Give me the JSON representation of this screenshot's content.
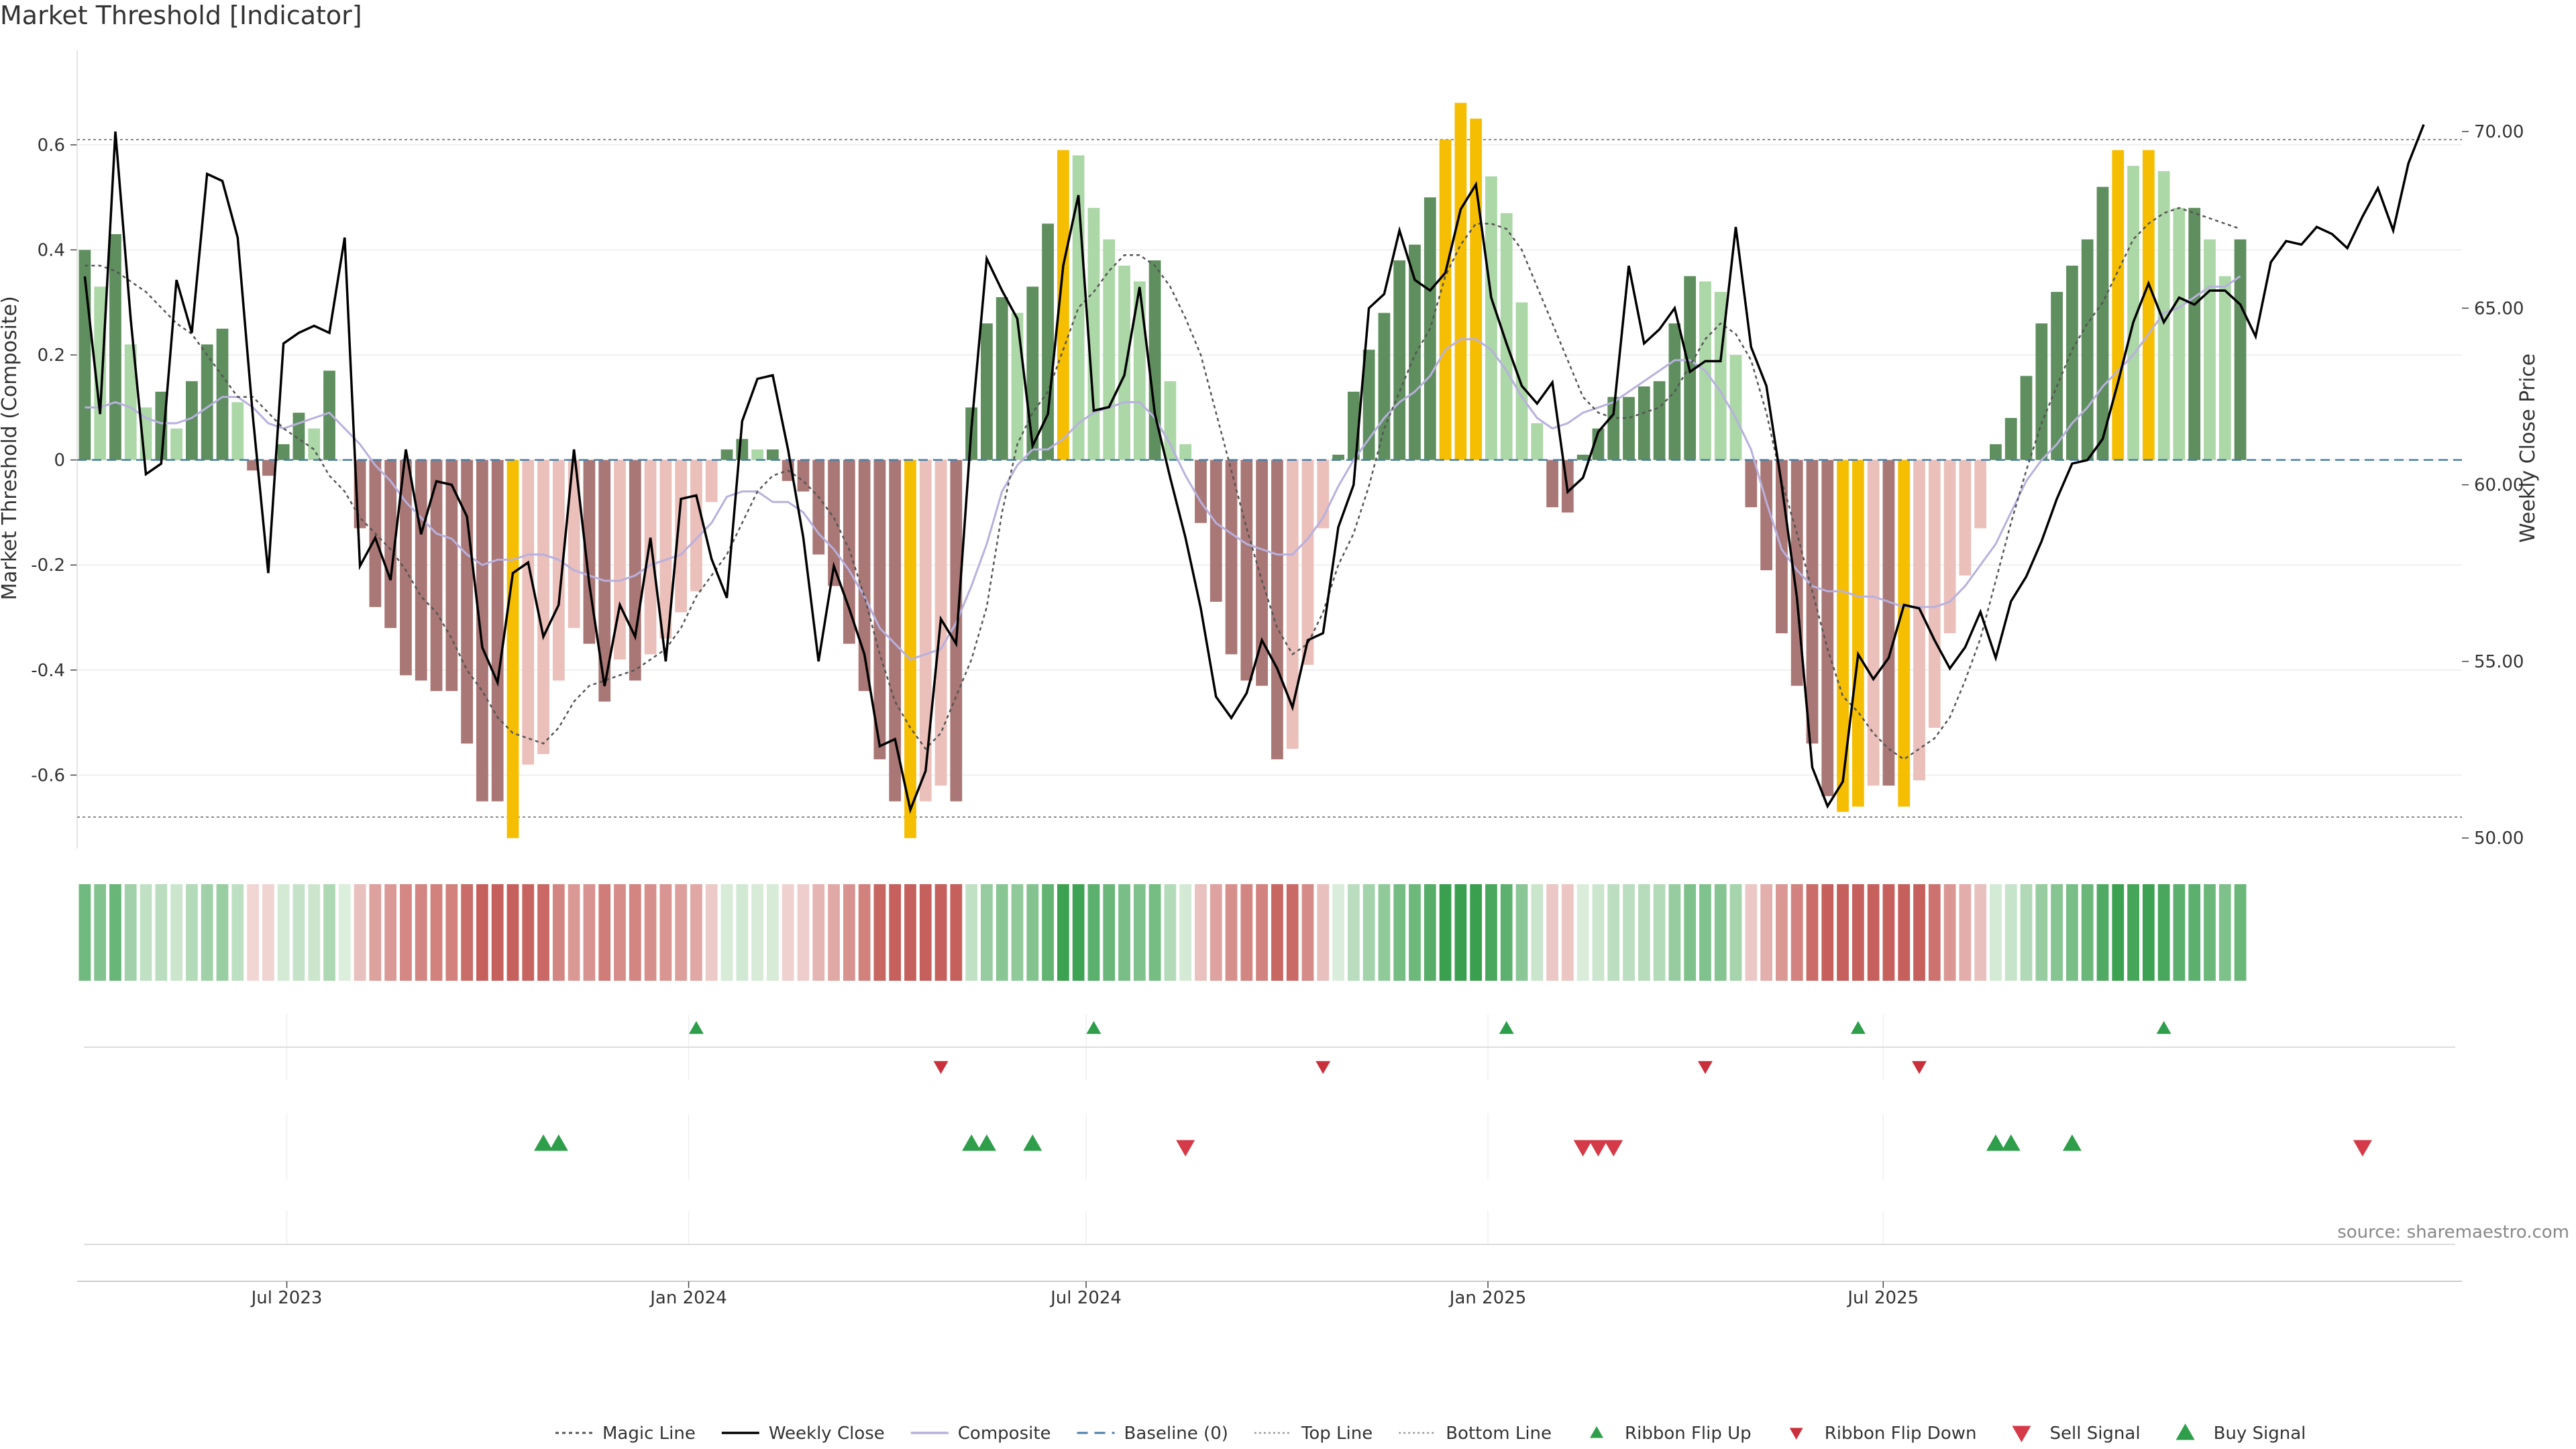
{
  "title": "Market Threshold [Indicator]",
  "source_text": "source: sharemaestro.com",
  "chart_data": {
    "type": "bar",
    "weeks": 156,
    "start_date": "2023-03-27",
    "left_axis": {
      "label": "Market Threshold (Composite)",
      "ylim": [
        -0.74,
        0.78
      ],
      "ticks": [
        "-0.6",
        "-0.4",
        "-0.2",
        "0",
        "0.2",
        "0.4",
        "0.6"
      ]
    },
    "right_axis": {
      "label": "Weekly Close Price",
      "ylim": [
        49.7,
        72.3
      ],
      "ticks": [
        "50.00",
        "55.00",
        "60.00",
        "65.00",
        "70.00"
      ]
    },
    "x_ticks": [
      {
        "label": "Jul 2023",
        "date": "2023-07-01"
      },
      {
        "label": "Jan 2024",
        "date": "2024-01-01"
      },
      {
        "label": "Jul 2024",
        "date": "2024-07-01"
      },
      {
        "label": "Jan 2025",
        "date": "2025-01-01"
      },
      {
        "label": "Jul 2025",
        "date": "2025-07-01"
      }
    ],
    "top_line": 0.61,
    "bottom_line": -0.68,
    "baseline": 0,
    "composite": [
      0.4,
      0.33,
      0.43,
      0.22,
      0.1,
      0.13,
      0.06,
      0.15,
      0.22,
      0.25,
      0.11,
      -0.02,
      -0.03,
      0.03,
      0.09,
      0.06,
      0.17,
      0.0,
      -0.13,
      -0.28,
      -0.32,
      -0.41,
      -0.42,
      -0.44,
      -0.44,
      -0.54,
      -0.65,
      -0.65,
      -0.72,
      -0.58,
      -0.56,
      -0.42,
      -0.32,
      -0.35,
      -0.46,
      -0.38,
      -0.42,
      -0.37,
      -0.34,
      -0.29,
      -0.25,
      -0.08,
      0.02,
      0.04,
      0.02,
      0.02,
      -0.04,
      -0.06,
      -0.18,
      -0.24,
      -0.35,
      -0.44,
      -0.57,
      -0.65,
      -0.72,
      -0.65,
      -0.62,
      -0.65,
      0.1,
      0.26,
      0.31,
      0.28,
      0.33,
      0.45,
      0.59,
      0.58,
      0.48,
      0.42,
      0.37,
      0.34,
      0.38,
      0.15,
      0.03,
      -0.12,
      -0.27,
      -0.37,
      -0.42,
      -0.43,
      -0.57,
      -0.55,
      -0.39,
      -0.13,
      0.01,
      0.13,
      0.21,
      0.28,
      0.38,
      0.41,
      0.5,
      0.61,
      0.68,
      0.65,
      0.54,
      0.47,
      0.3,
      0.07,
      -0.09,
      -0.1,
      0.01,
      0.06,
      0.12,
      0.12,
      0.14,
      0.15,
      0.26,
      0.35,
      0.34,
      0.32,
      0.2,
      -0.09,
      -0.21,
      -0.33,
      -0.43,
      -0.54,
      -0.64,
      -0.67,
      -0.66,
      -0.62,
      -0.62,
      -0.66,
      -0.61,
      -0.51,
      -0.33,
      -0.22,
      -0.13,
      0.03,
      0.08,
      0.16,
      0.26,
      0.32,
      0.37,
      0.42,
      0.52,
      0.59,
      0.56,
      0.59,
      0.55,
      0.48,
      0.48,
      0.42,
      0.35,
      0.42
    ],
    "weekly_close": [
      65.9,
      62.0,
      70.0,
      64.7,
      60.3,
      60.6,
      65.8,
      64.3,
      68.8,
      68.6,
      67.0,
      61.9,
      57.5,
      64.0,
      64.3,
      64.5,
      64.3,
      67.0,
      57.7,
      58.5,
      57.3,
      61.0,
      58.6,
      60.1,
      60.0,
      59.1,
      55.4,
      54.4,
      57.5,
      57.8,
      55.7,
      56.6,
      61.0,
      57.2,
      54.3,
      56.6,
      55.7,
      58.5,
      55.0,
      59.6,
      59.7,
      57.9,
      56.8,
      61.8,
      63.0,
      63.1,
      61.0,
      58.5,
      55.0,
      57.7,
      56.5,
      55.2,
      52.6,
      52.8,
      50.8,
      51.9,
      56.2,
      55.5,
      61.6,
      66.4,
      65.5,
      64.7,
      61.1,
      62.0,
      66.2,
      68.2,
      62.1,
      62.2,
      63.1,
      65.6,
      62.0,
      60.2,
      58.5,
      56.5,
      54.0,
      53.4,
      54.1,
      55.6,
      54.8,
      53.7,
      55.6,
      55.8,
      58.8,
      60.0,
      65.0,
      65.4,
      67.2,
      65.8,
      65.5,
      66.0,
      67.8,
      68.5,
      65.3,
      64.0,
      62.8,
      62.3,
      62.9,
      59.8,
      60.2,
      61.5,
      62.0,
      66.2,
      64.0,
      64.4,
      65.0,
      63.2,
      63.5,
      63.5,
      67.3,
      63.9,
      62.8,
      60.0,
      56.8,
      52.0,
      50.9,
      51.6,
      55.2,
      54.5,
      55.1,
      56.6,
      56.5,
      55.6,
      54.8,
      55.4,
      56.4,
      55.1,
      56.7,
      57.4,
      58.4,
      59.6,
      60.6,
      60.7,
      61.3,
      62.9,
      64.6,
      65.7,
      64.6,
      65.3,
      65.1,
      65.5,
      65.5,
      65.1,
      64.2,
      66.3,
      66.9,
      66.8,
      67.3,
      67.1,
      66.7,
      67.6,
      68.4,
      67.2,
      69.1,
      70.2
    ],
    "magic_line": [
      0.37,
      0.37,
      0.36,
      0.34,
      0.32,
      0.29,
      0.26,
      0.24,
      0.2,
      0.16,
      0.12,
      0.12,
      0.09,
      0.06,
      0.04,
      0.02,
      -0.03,
      -0.06,
      -0.11,
      -0.14,
      -0.17,
      -0.21,
      -0.26,
      -0.29,
      -0.34,
      -0.4,
      -0.44,
      -0.49,
      -0.52,
      -0.53,
      -0.54,
      -0.51,
      -0.46,
      -0.43,
      -0.42,
      -0.41,
      -0.4,
      -0.38,
      -0.36,
      -0.32,
      -0.26,
      -0.22,
      -0.18,
      -0.12,
      -0.06,
      -0.03,
      -0.02,
      -0.04,
      -0.07,
      -0.11,
      -0.17,
      -0.26,
      -0.37,
      -0.46,
      -0.51,
      -0.55,
      -0.52,
      -0.45,
      -0.38,
      -0.28,
      -0.1,
      0.03,
      0.09,
      0.13,
      0.21,
      0.29,
      0.32,
      0.36,
      0.39,
      0.39,
      0.37,
      0.33,
      0.27,
      0.2,
      0.09,
      -0.02,
      -0.13,
      -0.23,
      -0.32,
      -0.37,
      -0.35,
      -0.29,
      -0.2,
      -0.14,
      -0.05,
      0.06,
      0.13,
      0.2,
      0.25,
      0.35,
      0.41,
      0.45,
      0.45,
      0.44,
      0.4,
      0.33,
      0.26,
      0.19,
      0.12,
      0.09,
      0.08,
      0.08,
      0.09,
      0.1,
      0.13,
      0.18,
      0.23,
      0.26,
      0.24,
      0.19,
      0.09,
      -0.04,
      -0.14,
      -0.25,
      -0.36,
      -0.45,
      -0.48,
      -0.52,
      -0.55,
      -0.57,
      -0.55,
      -0.53,
      -0.49,
      -0.42,
      -0.34,
      -0.23,
      -0.12,
      -0.02,
      0.07,
      0.14,
      0.21,
      0.26,
      0.3,
      0.36,
      0.42,
      0.45,
      0.47,
      0.48,
      0.47,
      0.46,
      0.45,
      0.44
    ],
    "composite_ma": [
      0.1,
      0.1,
      0.11,
      0.1,
      0.08,
      0.07,
      0.07,
      0.08,
      0.1,
      0.12,
      0.12,
      0.1,
      0.07,
      0.06,
      0.07,
      0.08,
      0.09,
      0.06,
      0.03,
      -0.01,
      -0.04,
      -0.08,
      -0.11,
      -0.14,
      -0.15,
      -0.18,
      -0.2,
      -0.19,
      -0.19,
      -0.18,
      -0.18,
      -0.19,
      -0.21,
      -0.22,
      -0.23,
      -0.23,
      -0.22,
      -0.2,
      -0.19,
      -0.18,
      -0.15,
      -0.12,
      -0.07,
      -0.06,
      -0.06,
      -0.08,
      -0.08,
      -0.1,
      -0.14,
      -0.17,
      -0.21,
      -0.26,
      -0.32,
      -0.35,
      -0.38,
      -0.37,
      -0.36,
      -0.31,
      -0.24,
      -0.16,
      -0.06,
      -0.01,
      0.02,
      0.02,
      0.04,
      0.07,
      0.09,
      0.1,
      0.11,
      0.11,
      0.08,
      0.03,
      -0.03,
      -0.08,
      -0.12,
      -0.14,
      -0.16,
      -0.17,
      -0.18,
      -0.18,
      -0.15,
      -0.11,
      -0.05,
      0.0,
      0.04,
      0.08,
      0.11,
      0.13,
      0.16,
      0.21,
      0.23,
      0.23,
      0.21,
      0.17,
      0.12,
      0.08,
      0.06,
      0.07,
      0.09,
      0.1,
      0.11,
      0.13,
      0.15,
      0.17,
      0.19,
      0.19,
      0.17,
      0.13,
      0.08,
      0.02,
      -0.08,
      -0.17,
      -0.21,
      -0.24,
      -0.25,
      -0.25,
      -0.26,
      -0.26,
      -0.27,
      -0.28,
      -0.28,
      -0.28,
      -0.27,
      -0.24,
      -0.2,
      -0.16,
      -0.1,
      -0.04,
      0.0,
      0.03,
      0.07,
      0.1,
      0.14,
      0.17,
      0.2,
      0.24,
      0.28,
      0.29,
      0.31,
      0.33,
      0.33,
      0.35
    ],
    "ribbon_flips_up": [
      40,
      66,
      93,
      116,
      136
    ],
    "ribbon_flips_down": [
      56,
      81,
      106,
      120
    ],
    "buy_signals": [
      30,
      31,
      58,
      59,
      62,
      125,
      126,
      130
    ],
    "sell_signals": [
      72,
      98,
      99,
      100,
      149
    ],
    "legend": [
      {
        "label": "Magic Line",
        "kind": "dashed",
        "color": "#555555"
      },
      {
        "label": "Weekly Close",
        "kind": "line",
        "color": "#000000"
      },
      {
        "label": "Composite",
        "kind": "line",
        "color": "#b8b0de"
      },
      {
        "label": "Baseline (0)",
        "kind": "dash",
        "color": "#4a7fa8"
      },
      {
        "label": "Top Line",
        "kind": "dotted",
        "color": "#999999"
      },
      {
        "label": "Bottom Line",
        "kind": "dotted",
        "color": "#999999"
      },
      {
        "label": "Ribbon Flip Up",
        "kind": "tri-up-small",
        "color": "#2e9e4a"
      },
      {
        "label": "Ribbon Flip Down",
        "kind": "tri-down-small",
        "color": "#c8303c"
      },
      {
        "label": "Sell Signal",
        "kind": "tri-down",
        "color": "#d43a48"
      },
      {
        "label": "Buy Signal",
        "kind": "tri-up",
        "color": "#2e9e4a"
      }
    ],
    "colors": {
      "pos_strong": "#5f8f5e",
      "pos_weak": "#acd7a7",
      "neg_strong": "#a97775",
      "neg_weak": "#ebbfba",
      "extreme": "#f6be00"
    }
  }
}
